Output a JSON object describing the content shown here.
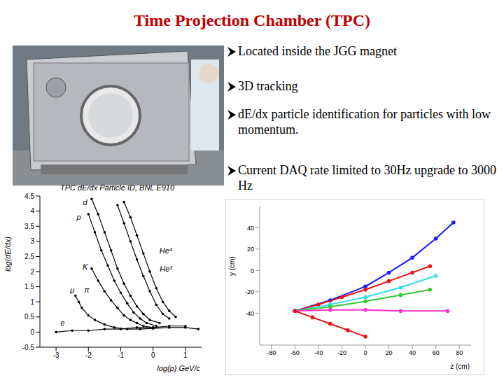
{
  "title": "Time Projection Chamber (TPC)",
  "bullets": [
    "Located inside the JGG magnet",
    "3D tracking",
    "dE/dx particle identification for particles with low momentum.",
    "Current DAQ rate limited to 30Hz upgrade to 3000 Hz"
  ],
  "chart_data": [
    {
      "type": "scatter",
      "title": "TPC dE/dx Particle ID, BNL E910",
      "x_label": "log(p) GeV/c",
      "y_label": "log(dE/dx)",
      "xlim": [
        -3.5,
        1.5
      ],
      "xticks": [
        -3,
        -2,
        -1,
        0,
        1
      ],
      "ylim": [
        -0.5,
        4.5
      ],
      "yticks": [
        -0.5,
        0,
        0.5,
        1,
        1.5,
        2,
        2.5,
        3,
        3.5,
        4,
        4.5
      ],
      "grid": false,
      "color": "#000000",
      "marker": "circle",
      "line_style": "solid",
      "series": [
        {
          "x": [
            -1.9,
            -1.7,
            -1.5,
            -1.3,
            -1.1,
            -0.9,
            -0.7,
            -0.5,
            -0.3,
            -0.1,
            0.2
          ],
          "y": [
            4.4,
            3.9,
            3.3,
            2.7,
            2.1,
            1.6,
            1.2,
            0.85,
            0.6,
            0.4,
            0.3
          ]
        },
        {
          "x": [
            -2.0,
            -1.8,
            -1.6,
            -1.4,
            -1.2,
            -1.0,
            -0.8,
            -0.6,
            -0.4,
            -0.2,
            0.1
          ],
          "y": [
            3.9,
            3.3,
            2.7,
            2.2,
            1.7,
            1.3,
            0.95,
            0.65,
            0.45,
            0.3,
            0.2
          ]
        },
        {
          "x": [
            -1.9,
            -1.7,
            -1.5,
            -1.3,
            -1.1,
            -0.9,
            -0.7,
            -0.5,
            -0.3,
            0
          ],
          "y": [
            2.1,
            1.7,
            1.35,
            1.05,
            0.8,
            0.55,
            0.4,
            0.3,
            0.2,
            0.15
          ]
        },
        {
          "x": [
            -2.4,
            -2.3,
            -2.2,
            -2.0,
            -1.8,
            -1.5,
            -1.2,
            -0.8,
            -0.4,
            0,
            0.5,
            1.0,
            1.4
          ],
          "y": [
            1.2,
            1.0,
            0.8,
            0.55,
            0.4,
            0.25,
            0.15,
            0.1,
            0.1,
            0.12,
            0.15,
            0.15,
            0.1
          ]
        },
        {
          "x": [
            -1.1,
            -0.9,
            -0.7,
            -0.5,
            -0.3,
            -0.1,
            0.1,
            0.3,
            0.5
          ],
          "y": [
            4.2,
            3.6,
            3.0,
            2.4,
            1.85,
            1.35,
            0.9,
            0.6,
            0.45
          ]
        },
        {
          "x": [
            -0.9,
            -0.7,
            -0.5,
            -0.3,
            -0.1,
            0.1,
            0.3,
            0.5,
            0.7
          ],
          "y": [
            4.3,
            3.8,
            3.2,
            2.6,
            2.0,
            1.45,
            1.0,
            0.7,
            0.5
          ]
        },
        {
          "x": [
            -3.0,
            -2.5,
            -2.0,
            -1.5,
            -1.0,
            -0.5,
            0,
            0.5,
            1.0
          ],
          "y": [
            0.0,
            0.05,
            0.05,
            0.1,
            0.1,
            0.15,
            0.15,
            0.2,
            0.2
          ]
        }
      ],
      "annotations": [
        {
          "text": "d",
          "x": -2.1,
          "y": 4.3
        },
        {
          "text": "p",
          "x": -2.3,
          "y": 3.8
        },
        {
          "text": "K",
          "x": -2.1,
          "y": 2.15
        },
        {
          "text": "He⁴",
          "x": 0.4,
          "y": 2.7
        },
        {
          "text": "He³",
          "x": 0.4,
          "y": 2.1
        },
        {
          "text": "μ",
          "x": -2.5,
          "y": 1.4
        },
        {
          "text": "π",
          "x": -2.05,
          "y": 1.4
        },
        {
          "text": "e",
          "x": -2.8,
          "y": 0.3
        }
      ]
    },
    {
      "type": "scatter",
      "x_label": "z (cm)",
      "y_label": "y (cm)",
      "xlim": [
        -90,
        90
      ],
      "xticks": [
        -80,
        -60,
        -40,
        -20,
        0,
        20,
        40,
        60,
        80
      ],
      "ylim": [
        -70,
        60
      ],
      "yticks": [
        -40,
        -20,
        0,
        20,
        40
      ],
      "grid": false,
      "marker": "circle",
      "line_style": "solid",
      "series": [
        {
          "color": "#1a1aff",
          "x": [
            -60,
            -30,
            0,
            20,
            40,
            60,
            75
          ],
          "y": [
            -38,
            -28,
            -15,
            -2,
            12,
            30,
            45
          ]
        },
        {
          "color": "#ee1111",
          "x": [
            -60,
            -40,
            -20,
            0,
            20,
            40,
            55
          ],
          "y": [
            -38,
            -32,
            -25,
            -18,
            -10,
            -2,
            4
          ]
        },
        {
          "color": "#33ddee",
          "x": [
            -60,
            -30,
            0,
            30,
            60
          ],
          "y": [
            -38,
            -32,
            -25,
            -16,
            -5
          ]
        },
        {
          "color": "#33cc33",
          "x": [
            -60,
            -30,
            0,
            30,
            55
          ],
          "y": [
            -38,
            -34,
            -29,
            -23,
            -18
          ]
        },
        {
          "color": "#ff33cc",
          "x": [
            -60,
            -30,
            0,
            30,
            70
          ],
          "y": [
            -38,
            -37,
            -37,
            -38,
            -38
          ]
        },
        {
          "color": "#ee1111",
          "x": [
            -60,
            -45,
            -30,
            -15,
            0
          ],
          "y": [
            -38,
            -44,
            -50,
            -56,
            -62
          ]
        }
      ]
    }
  ]
}
